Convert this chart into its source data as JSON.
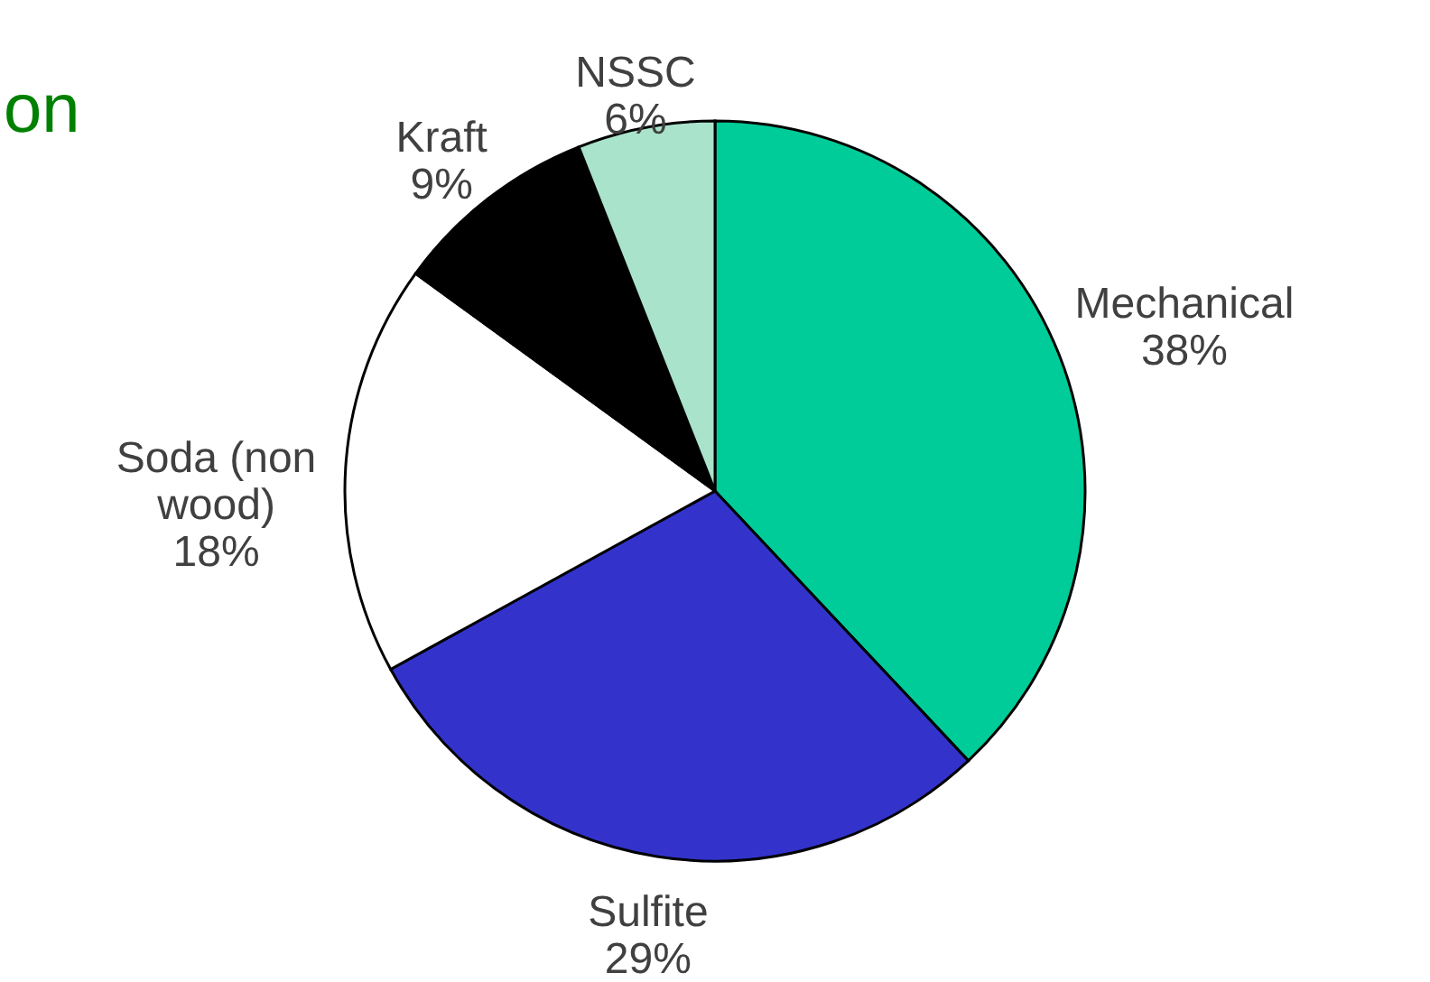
{
  "chart_data": {
    "type": "pie",
    "title": "on",
    "categories": [
      "Mechanical",
      "Sulfite",
      "Soda (non wood)",
      "Kraft",
      "NSSC"
    ],
    "values": [
      38,
      29,
      18,
      9,
      6
    ],
    "value_labels": [
      "38%",
      "29%",
      "18%",
      "9%",
      "6%"
    ],
    "colors": [
      "#00cc99",
      "#3333cc",
      "#ffffff",
      "#000000",
      "#aae3cc"
    ]
  }
}
